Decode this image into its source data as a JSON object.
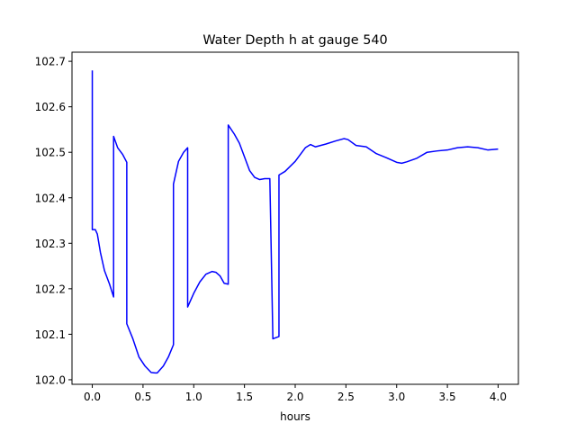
{
  "chart_data": {
    "type": "line",
    "title": "Water Depth h at gauge 540",
    "xlabel": "hours",
    "ylabel": "",
    "xlim": [
      -0.2,
      4.2
    ],
    "ylim": [
      101.99,
      102.72
    ],
    "xticks": [
      0.0,
      0.5,
      1.0,
      1.5,
      2.0,
      2.5,
      3.0,
      3.5,
      4.0
    ],
    "xtick_labels": [
      "0.0",
      "0.5",
      "1.0",
      "1.5",
      "2.0",
      "2.5",
      "3.0",
      "3.5",
      "4.0"
    ],
    "yticks": [
      102.0,
      102.1,
      102.2,
      102.3,
      102.4,
      102.5,
      102.6,
      102.7
    ],
    "ytick_labels": [
      "102.0",
      "102.1",
      "102.2",
      "102.3",
      "102.4",
      "102.5",
      "102.6",
      "102.7"
    ],
    "grid": false,
    "series": [
      {
        "color": "#0000ff",
        "x": [
          0.0,
          0.0,
          0.03,
          0.05,
          0.08,
          0.12,
          0.17,
          0.21,
          0.21,
          0.25,
          0.3,
          0.34,
          0.34,
          0.4,
          0.46,
          0.52,
          0.58,
          0.62,
          0.64,
          0.7,
          0.75,
          0.8,
          0.8,
          0.85,
          0.9,
          0.94,
          0.94,
          1.0,
          1.06,
          1.12,
          1.18,
          1.22,
          1.26,
          1.3,
          1.34,
          1.34,
          1.4,
          1.45,
          1.5,
          1.55,
          1.6,
          1.65,
          1.7,
          1.75,
          1.78,
          1.78,
          1.84,
          1.84,
          1.9,
          2.0,
          2.1,
          2.15,
          2.2,
          2.3,
          2.4,
          2.48,
          2.52,
          2.6,
          2.7,
          2.8,
          2.9,
          3.0,
          3.05,
          3.1,
          3.2,
          3.3,
          3.4,
          3.5,
          3.6,
          3.7,
          3.8,
          3.9,
          4.0
        ],
        "y": [
          102.68,
          102.33,
          102.33,
          102.32,
          102.28,
          102.24,
          102.21,
          102.182,
          102.535,
          102.51,
          102.495,
          102.478,
          102.123,
          102.09,
          102.05,
          102.03,
          102.016,
          102.015,
          102.015,
          102.03,
          102.05,
          102.077,
          102.43,
          102.48,
          102.5,
          102.51,
          102.16,
          102.19,
          102.215,
          102.232,
          102.238,
          102.236,
          102.228,
          102.212,
          102.21,
          102.56,
          102.54,
          102.52,
          102.49,
          102.46,
          102.445,
          102.44,
          102.442,
          102.442,
          102.09,
          102.09,
          102.095,
          102.45,
          102.458,
          102.48,
          102.51,
          102.517,
          102.512,
          102.518,
          102.525,
          102.53,
          102.528,
          102.515,
          102.512,
          102.497,
          102.488,
          102.478,
          102.476,
          102.479,
          102.487,
          102.5,
          102.503,
          102.505,
          102.51,
          102.512,
          102.51,
          102.505,
          102.507
        ]
      }
    ]
  }
}
